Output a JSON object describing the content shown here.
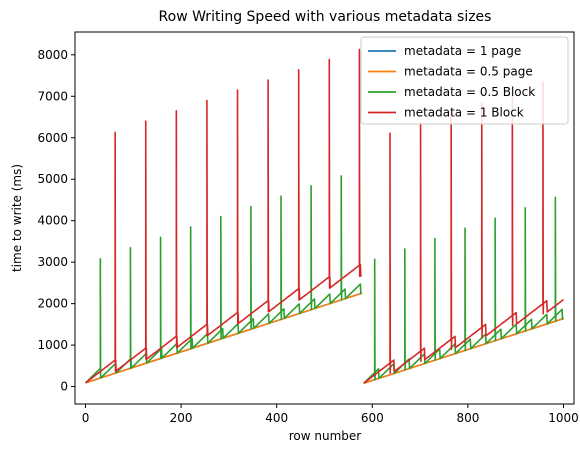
{
  "chart_data": {
    "type": "line",
    "title": "Row Writing Speed with various metadata sizes",
    "xlabel": "row number",
    "ylabel": "time to write (ms)",
    "xlim": [
      -22,
      1022
    ],
    "ylim": [
      -420,
      8550
    ],
    "x_ticks": [
      0,
      200,
      400,
      600,
      800,
      1000
    ],
    "y_ticks": [
      0,
      1000,
      2000,
      3000,
      4000,
      5000,
      6000,
      7000,
      8000
    ],
    "legend_position": "top-right",
    "grid": false,
    "series": [
      {
        "name": "metadata = 1 page",
        "color": "#1f77b4",
        "segments": [
          {
            "x": [
              0,
              578
            ],
            "y": [
              90,
              2250
            ]
          },
          {
            "x": [
              582,
              1000
            ],
            "y": [
              80,
              1640
            ]
          }
        ],
        "sawtooth": {
          "period": 0,
          "ramp_start": 0,
          "ramp_end": 0
        },
        "spikes": []
      },
      {
        "name": "metadata = 0.5 page",
        "color": "#ff7f0e",
        "segments": [
          {
            "x": [
              0,
              578
            ],
            "y": [
              90,
              2250
            ]
          },
          {
            "x": [
              582,
              1000
            ],
            "y": [
              80,
              1640
            ]
          }
        ],
        "sawtooth": {
          "period": 0,
          "ramp_start": 0,
          "ramp_end": 0
        },
        "spikes": []
      },
      {
        "name": "metadata = 0.5 Block",
        "color": "#2ca02c",
        "segments": [
          {
            "x": [
              0,
              578
            ],
            "y": [
              90,
              2250
            ]
          },
          {
            "x": [
              582,
              1000
            ],
            "y": [
              80,
              1640
            ]
          }
        ],
        "sawtooth": {
          "period": 32,
          "ramp_start": 0,
          "ramp_end": 240
        },
        "spikes": [
          {
            "x": 31,
            "y": 3080
          },
          {
            "x": 94,
            "y": 3350
          },
          {
            "x": 157,
            "y": 3600
          },
          {
            "x": 220,
            "y": 3850
          },
          {
            "x": 283,
            "y": 4100
          },
          {
            "x": 346,
            "y": 4340
          },
          {
            "x": 409,
            "y": 4590
          },
          {
            "x": 472,
            "y": 4840
          },
          {
            "x": 535,
            "y": 5080
          },
          {
            "x": 605,
            "y": 3070
          },
          {
            "x": 668,
            "y": 3320
          },
          {
            "x": 731,
            "y": 3570
          },
          {
            "x": 794,
            "y": 3820
          },
          {
            "x": 857,
            "y": 4060
          },
          {
            "x": 920,
            "y": 4310
          },
          {
            "x": 983,
            "y": 4560
          }
        ]
      },
      {
        "name": "metadata = 1 Block",
        "color": "#d62728",
        "segments": [
          {
            "x": [
              0,
              578
            ],
            "y": [
              90,
              2680
            ]
          },
          {
            "x": [
              582,
              1000
            ],
            "y": [
              80,
              1950
            ]
          }
        ],
        "sawtooth": {
          "period": 64,
          "ramp_start": 0,
          "ramp_end": 280
        },
        "spikes": [
          {
            "x": 62,
            "y": 6130
          },
          {
            "x": 126,
            "y": 6400
          },
          {
            "x": 190,
            "y": 6650
          },
          {
            "x": 254,
            "y": 6900
          },
          {
            "x": 318,
            "y": 7150
          },
          {
            "x": 382,
            "y": 7390
          },
          {
            "x": 446,
            "y": 7640
          },
          {
            "x": 510,
            "y": 7890
          },
          {
            "x": 573,
            "y": 8130
          },
          {
            "x": 637,
            "y": 6110
          },
          {
            "x": 701,
            "y": 6360
          },
          {
            "x": 765,
            "y": 6610
          },
          {
            "x": 829,
            "y": 6850
          },
          {
            "x": 893,
            "y": 7100
          },
          {
            "x": 957,
            "y": 7350
          }
        ]
      }
    ]
  }
}
